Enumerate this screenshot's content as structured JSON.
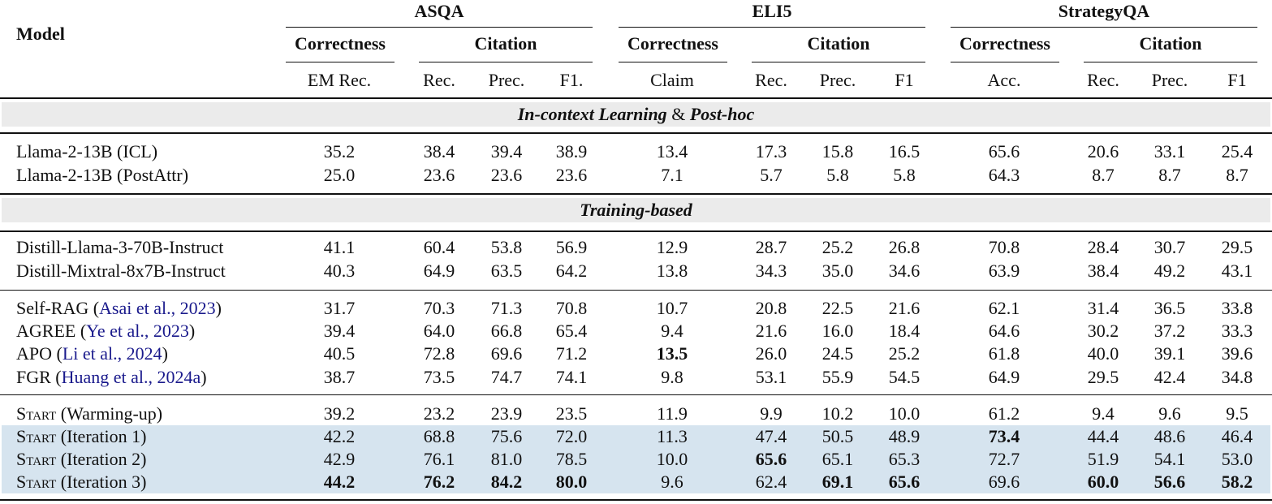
{
  "header": {
    "model_label": "Model",
    "datasets": [
      {
        "name": "ASQA",
        "groups": [
          "Correctness",
          "Citation"
        ],
        "metrics": [
          "EM Rec.",
          "Rec.",
          "Prec.",
          "F1."
        ]
      },
      {
        "name": "ELI5",
        "groups": [
          "Correctness",
          "Citation"
        ],
        "metrics": [
          "Claim",
          "Rec.",
          "Prec.",
          "F1"
        ]
      },
      {
        "name": "StrategyQA",
        "groups": [
          "Correctness",
          "Citation"
        ],
        "metrics": [
          "Acc.",
          "Rec.",
          "Prec.",
          "F1"
        ]
      }
    ]
  },
  "sections": {
    "icl": {
      "title_a": "In-context Learning",
      "amp": "&",
      "title_b": "Post-hoc"
    },
    "training": {
      "title": "Training-based"
    }
  },
  "colors": {
    "section_band": "#ebebeb",
    "highlight_band": "#d6e4ef",
    "citation_link": "#1a1a8c"
  },
  "rows": [
    {
      "model": "Llama-2-13B (ICL)",
      "values": [
        "35.2",
        "38.4",
        "39.4",
        "38.9",
        "13.4",
        "17.3",
        "15.8",
        "16.5",
        "65.6",
        "20.6",
        "33.1",
        "25.4"
      ]
    },
    {
      "model": "Llama-2-13B (PostAttr)",
      "values": [
        "25.0",
        "23.6",
        "23.6",
        "23.6",
        "7.1",
        "5.7",
        "5.8",
        "5.8",
        "64.3",
        "8.7",
        "8.7",
        "8.7"
      ]
    },
    {
      "model": "Distill-Llama-3-70B-Instruct",
      "values": [
        "41.1",
        "60.4",
        "53.8",
        "56.9",
        "12.9",
        "28.7",
        "25.2",
        "26.8",
        "70.8",
        "28.4",
        "30.7",
        "29.5"
      ]
    },
    {
      "model": "Distill-Mixtral-8x7B-Instruct",
      "values": [
        "40.3",
        "64.9",
        "63.5",
        "64.2",
        "13.8",
        "34.3",
        "35.0",
        "34.6",
        "63.9",
        "38.4",
        "49.2",
        "43.1"
      ]
    },
    {
      "model": "Self-RAG",
      "cite": "Asai et al., 2023",
      "values": [
        "31.7",
        "70.3",
        "71.3",
        "70.8",
        "10.7",
        "20.8",
        "22.5",
        "21.6",
        "62.1",
        "31.4",
        "36.5",
        "33.8"
      ]
    },
    {
      "model": "AGREE",
      "cite": "Ye et al., 2023",
      "values": [
        "39.4",
        "64.0",
        "66.8",
        "65.4",
        "9.4",
        "21.6",
        "16.0",
        "18.4",
        "64.6",
        "30.2",
        "37.2",
        "33.3"
      ]
    },
    {
      "model": "APO",
      "cite": "Li et al., 2024",
      "values": [
        "40.5",
        "72.8",
        "69.6",
        "71.2",
        "13.5",
        "26.0",
        "24.5",
        "25.2",
        "61.8",
        "40.0",
        "39.1",
        "39.6"
      ],
      "bold": [
        4
      ]
    },
    {
      "model": "FGR",
      "cite": "Huang et al., 2024a",
      "values": [
        "38.7",
        "73.5",
        "74.7",
        "74.1",
        "9.8",
        "53.1",
        "55.9",
        "54.5",
        "64.9",
        "29.5",
        "42.4",
        "34.8"
      ]
    },
    {
      "model_sc": "Start",
      "model_suffix": "(Warming-up)",
      "values": [
        "39.2",
        "23.2",
        "23.9",
        "23.5",
        "11.9",
        "9.9",
        "10.2",
        "10.0",
        "61.2",
        "9.4",
        "9.6",
        "9.5"
      ]
    },
    {
      "model_sc": "Start",
      "model_suffix": "(Iteration 1)",
      "values": [
        "42.2",
        "68.8",
        "75.6",
        "72.0",
        "11.3",
        "47.4",
        "50.5",
        "48.9",
        "73.4",
        "44.4",
        "48.6",
        "46.4"
      ],
      "bold": [
        8
      ]
    },
    {
      "model_sc": "Start",
      "model_suffix": "(Iteration 2)",
      "values": [
        "42.9",
        "76.1",
        "81.0",
        "78.5",
        "10.0",
        "65.6",
        "65.1",
        "65.3",
        "72.7",
        "51.9",
        "54.1",
        "53.0"
      ],
      "bold": [
        5
      ]
    },
    {
      "model_sc": "Start",
      "model_suffix": "(Iteration 3)",
      "values": [
        "44.2",
        "76.2",
        "84.2",
        "80.0",
        "9.6",
        "62.4",
        "69.1",
        "65.6",
        "69.6",
        "60.0",
        "56.6",
        "58.2"
      ],
      "bold": [
        0,
        1,
        2,
        3,
        6,
        7,
        9,
        10,
        11
      ]
    }
  ]
}
